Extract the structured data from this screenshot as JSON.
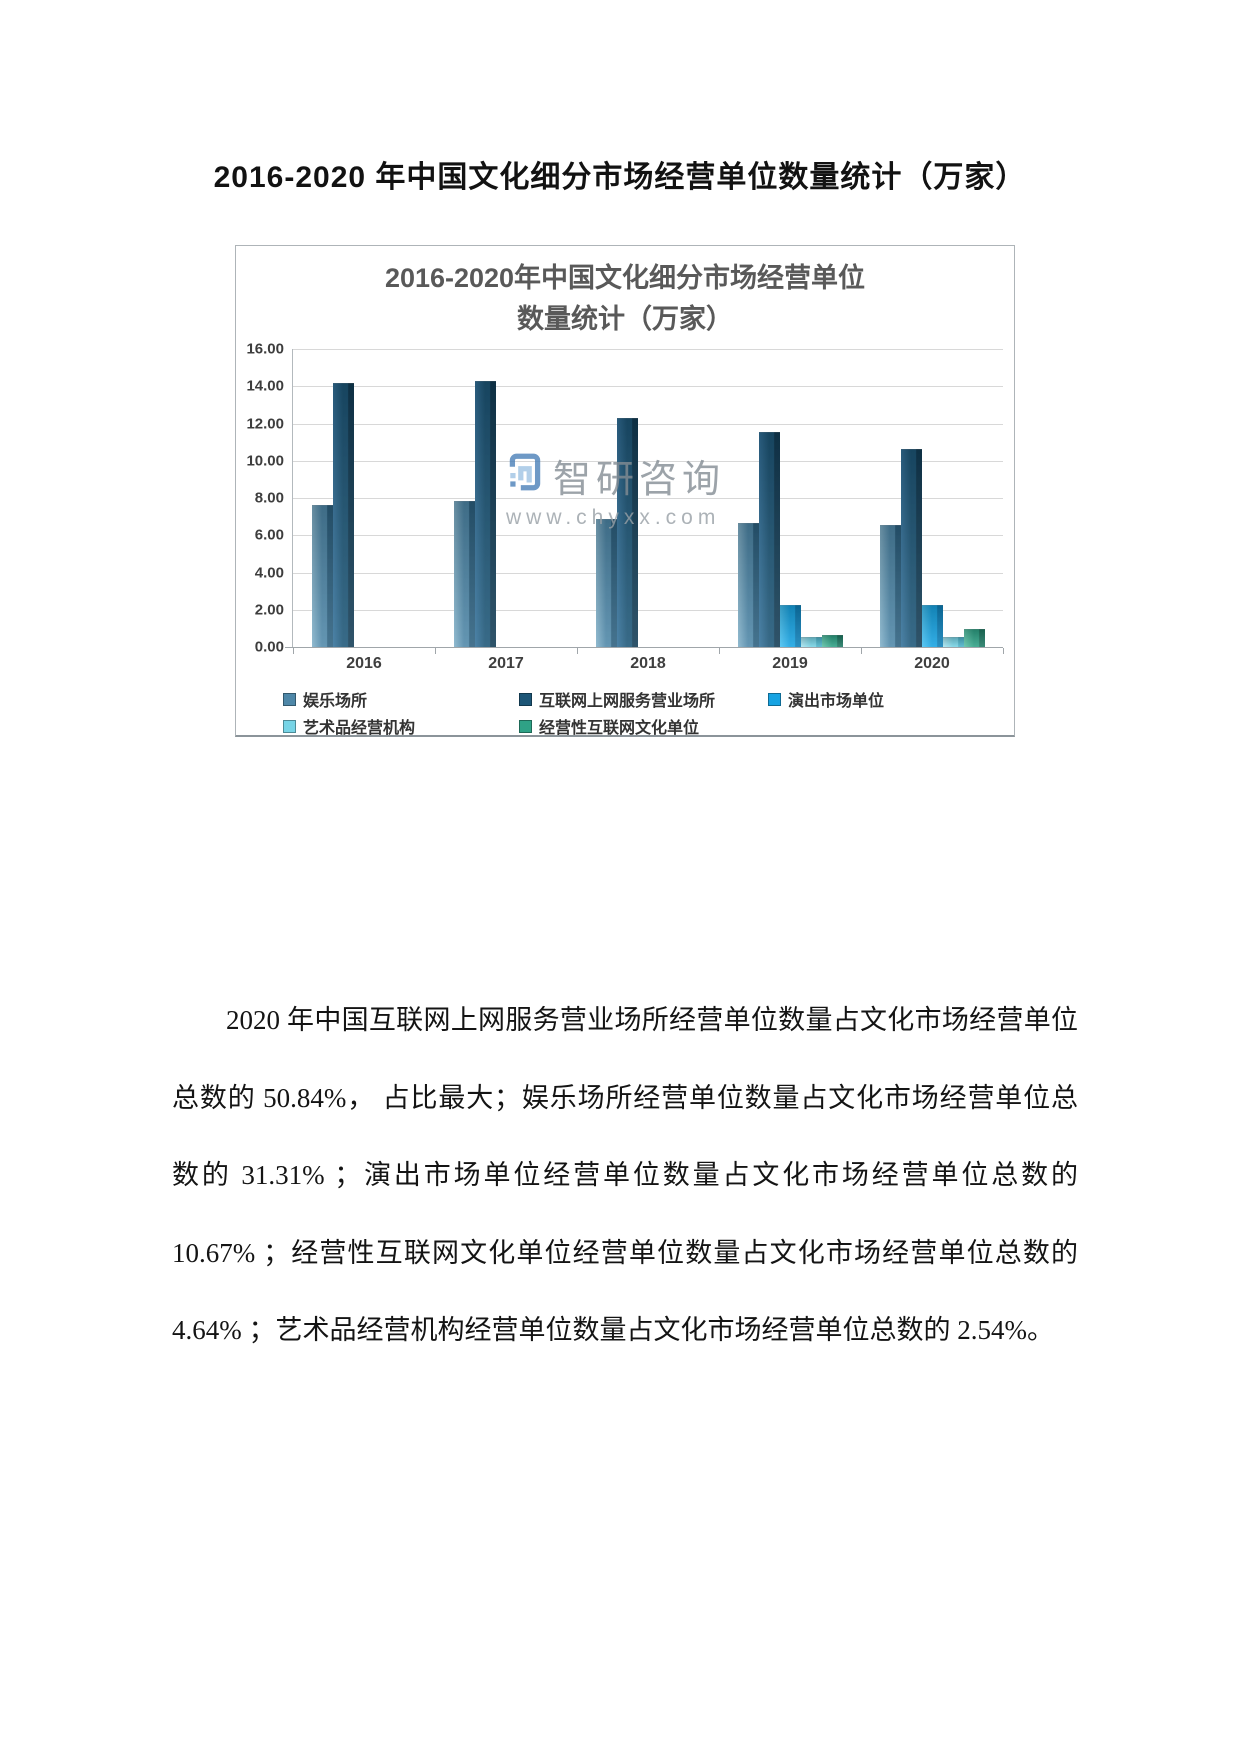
{
  "page": {
    "title": "2016-2020 年中国文化细分市场经营单位数量统计（万家）",
    "paragraph": "2020 年中国互联网上网服务营业场所经营单位数量占文化市场经营单位总数的 50.84%， 占比最大；娱乐场所经营单位数量占文化市场经营单位总数的 31.31% ；演出市场单位经营单位数量占文化市场经营单位总数的 10.67% ；经营性互联网文化单位经营单位数量占文化市场经营单位总数的 4.64% ；艺术品经营机构经营单位数量占文化市场经营单位总数的 2.54%。"
  },
  "watermark": {
    "brand": "智研咨询",
    "url": "www.chyxx.com",
    "logo_color_dark": "#4a80b8",
    "logo_color_light": "#9fc4e4"
  },
  "chart_data": {
    "type": "bar",
    "title_line1": "2016-2020年中国文化细分市场经营单位",
    "title_line2": "数量统计（万家）",
    "categories": [
      "2016",
      "2017",
      "2018",
      "2019",
      "2020"
    ],
    "series": [
      {
        "name": "娱乐场所",
        "color": "#4e87a8",
        "color_light": "#82b1c9",
        "color_dark": "#2c607f",
        "values": [
          7.63,
          7.85,
          6.85,
          6.67,
          6.55
        ]
      },
      {
        "name": "互联网上网服务营业场所",
        "color": "#1d5677",
        "color_light": "#33719a",
        "color_dark": "#123c55",
        "values": [
          14.15,
          14.3,
          12.32,
          11.57,
          10.63
        ]
      },
      {
        "name": "演出市场单位",
        "color": "#17a3e2",
        "color_light": "#46c1f2",
        "color_dark": "#0d7fb8",
        "values": [
          null,
          null,
          null,
          2.25,
          2.23
        ]
      },
      {
        "name": "艺术品经营机构",
        "color": "#77d4e6",
        "color_light": "#abe7f2",
        "color_dark": "#4fb6cc",
        "values": [
          null,
          null,
          null,
          0.54,
          0.53
        ]
      },
      {
        "name": "经营性互联网文化单位",
        "color": "#2fa286",
        "color_light": "#5cc2a6",
        "color_dark": "#1f7a64",
        "values": [
          null,
          null,
          null,
          0.64,
          0.97
        ]
      }
    ],
    "ylim": [
      0,
      16
    ],
    "ytick_step": 2,
    "grid": true,
    "legend_position": "bottom"
  }
}
